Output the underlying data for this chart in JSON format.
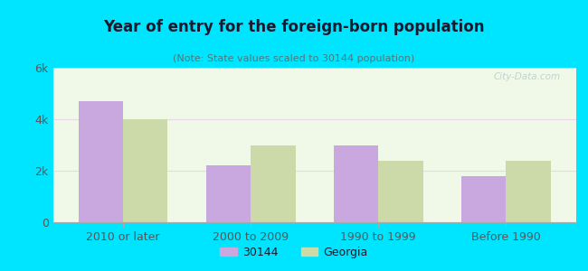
{
  "title": "Year of entry for the foreign-born population",
  "subtitle": "(Note: State values scaled to 30144 population)",
  "categories": [
    "2010 or later",
    "2000 to 2009",
    "1990 to 1999",
    "Before 1990"
  ],
  "values_30144": [
    4700,
    2200,
    3000,
    1800
  ],
  "values_georgia": [
    4000,
    3000,
    2400,
    2400
  ],
  "color_30144": "#c9a8e0",
  "color_georgia": "#ccd9a8",
  "background_outer": "#00e5ff",
  "background_plot": "#f0f8e8",
  "ylim": [
    0,
    6000
  ],
  "yticks": [
    0,
    2000,
    4000,
    6000
  ],
  "ytick_labels": [
    "0",
    "2k",
    "4k",
    "6k"
  ],
  "legend_30144": "30144",
  "legend_georgia": "Georgia",
  "bar_width": 0.35,
  "title_color": "#1a1a2e",
  "subtitle_color": "#4a7a7a",
  "tick_color": "#555555"
}
